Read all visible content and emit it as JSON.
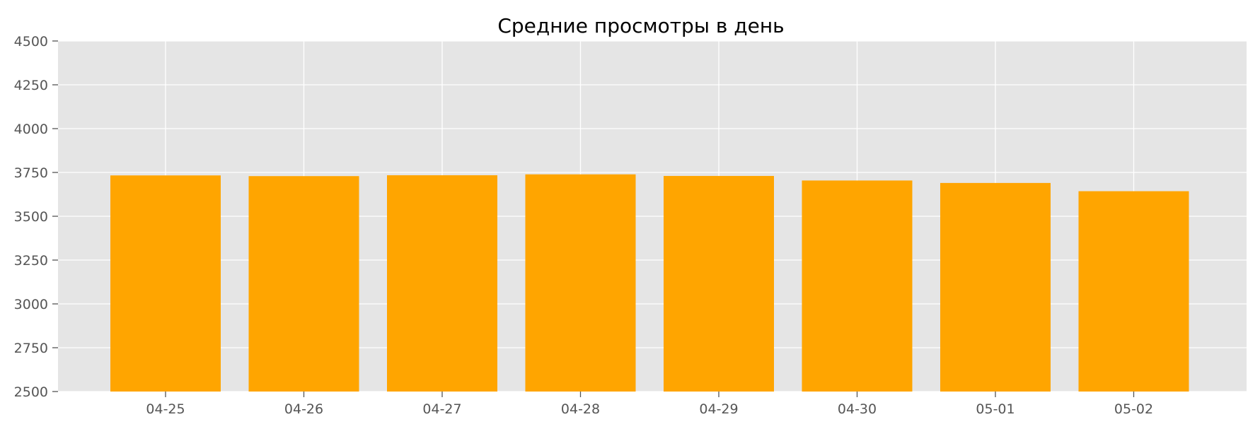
{
  "chart_data": {
    "type": "bar",
    "title": "Средние просмотры в день",
    "xlabel": "",
    "ylabel": "",
    "categories": [
      "04-25",
      "04-26",
      "04-27",
      "04-28",
      "04-29",
      "04-30",
      "05-01",
      "05-02"
    ],
    "values": [
      3733,
      3729,
      3734,
      3739,
      3730,
      3704,
      3690,
      3643
    ],
    "ylim": [
      2500,
      4500
    ],
    "yticks": [
      2500,
      2750,
      3000,
      3250,
      3500,
      3750,
      4000,
      4250,
      4500
    ],
    "ytick_labels": [
      "2500",
      "2750",
      "3000",
      "3250",
      "3500",
      "3750",
      "4000",
      "4250",
      "4500"
    ],
    "grid": true,
    "legend": "none",
    "colors": {
      "bar": "#FFA500",
      "plot_background": "#E5E5E5",
      "grid": "#FFFFFF",
      "tick_text": "#555555",
      "title_text": "#000000"
    }
  }
}
